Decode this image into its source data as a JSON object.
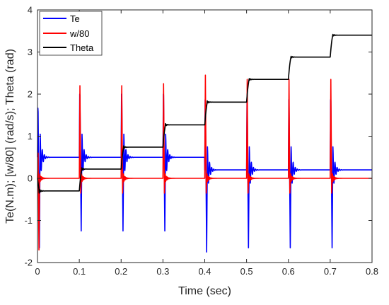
{
  "chart_data": {
    "type": "line",
    "xlabel": "Time (sec)",
    "ylabel": "Te(N.m); [w/80] (rad/s); Theta (rad)",
    "xlim": [
      0,
      0.8
    ],
    "ylim": [
      -2,
      4
    ],
    "xticks": [
      "0",
      "0.1",
      "0.2",
      "0.3",
      "0.4",
      "0.5",
      "0.6",
      "0.7",
      "0.8"
    ],
    "yticks": [
      "-2",
      "-1",
      "0",
      "1",
      "2",
      "3",
      "4"
    ],
    "grid": false,
    "legend_position": "top-left",
    "step_times": [
      0.0,
      0.1,
      0.2,
      0.3,
      0.4,
      0.5,
      0.6,
      0.7
    ],
    "series": [
      {
        "name": "Te",
        "color": "#0000ff",
        "baseline_levels": [
          0.5,
          0.5,
          0.5,
          0.5,
          0.2,
          0.2,
          0.2,
          0.2
        ],
        "pulse_peaks": [
          1.9,
          2.3,
          2.3,
          2.3,
          2.2,
          2.2,
          2.2,
          2.2
        ],
        "pulse_troughs": [
          -1.65,
          -1.25,
          -1.25,
          -1.25,
          -1.75,
          -1.65,
          -1.65,
          -1.65
        ]
      },
      {
        "name": "w/80",
        "color": "#ff0000",
        "baseline_levels": [
          0,
          0,
          0,
          0,
          0,
          0,
          0,
          0
        ],
        "pulse_peaks": [
          0.6,
          2.2,
          2.2,
          2.25,
          2.45,
          2.35,
          2.35,
          2.35
        ],
        "pulse_troughs": [
          -1.7,
          -0.35,
          -0.35,
          -0.35,
          -0.35,
          -0.35,
          -0.35,
          -0.35
        ]
      },
      {
        "name": "Theta",
        "color": "#000000",
        "step_levels": [
          -0.3,
          0.22,
          0.74,
          1.27,
          1.81,
          2.35,
          2.88,
          3.4
        ]
      }
    ]
  }
}
